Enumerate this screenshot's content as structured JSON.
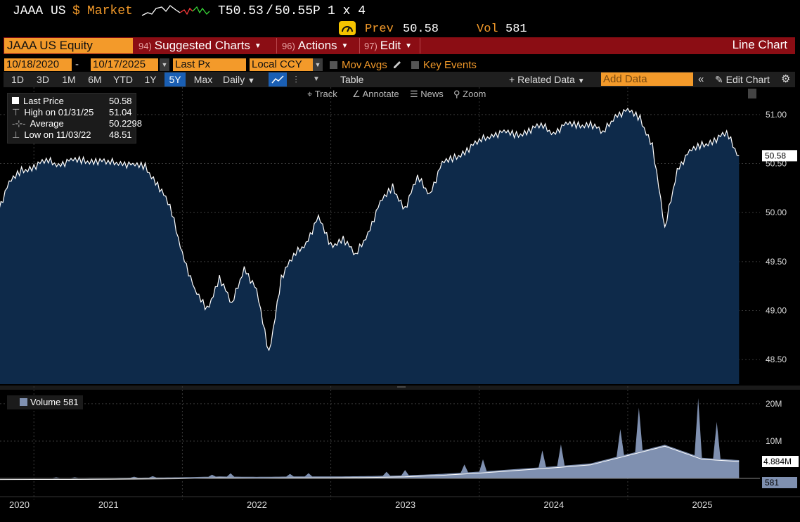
{
  "ticker": {
    "symbol": "JAAA US",
    "currency": "$",
    "market": "Market",
    "bid": "T50.53",
    "separator": "/",
    "ask": "50.55P",
    "size": "1 x 4",
    "prev_label": "Prev",
    "prev_value": "50.58",
    "vol_label": "Vol",
    "vol_value": "581"
  },
  "menu": {
    "security": "JAAA US Equity",
    "items": [
      {
        "num": "94)",
        "label": "Suggested Charts"
      },
      {
        "num": "96)",
        "label": "Actions"
      },
      {
        "num": "97)",
        "label": "Edit"
      }
    ],
    "chart_type": "Line Chart"
  },
  "settings": {
    "start_date": "10/18/2020",
    "dash": "-",
    "end_date": "10/17/2025",
    "field": "Last Px",
    "currency": "Local CCY",
    "mov_avgs": "Mov Avgs",
    "key_events": "Key Events"
  },
  "toolbar": {
    "timeframes": [
      "1D",
      "3D",
      "1M",
      "6M",
      "YTD",
      "1Y",
      "5Y",
      "Max"
    ],
    "active_timeframe": "5Y",
    "frequency": "Daily",
    "table": "Table",
    "related_data": "Related Data",
    "add_data_placeholder": "Add Data",
    "edit_chart": "Edit Chart"
  },
  "chart_tools": [
    "Track",
    "Annotate",
    "News",
    "Zoom"
  ],
  "legend": {
    "last_price_label": "Last Price",
    "last_price": "50.58",
    "high_label": "High on 01/31/25",
    "high": "51.04",
    "average_label": "Average",
    "average": "50.2298",
    "low_label": "Low on 11/03/22",
    "low": "48.51"
  },
  "volume_legend": "Volume 581",
  "colors": {
    "accent": "#f39a2a",
    "menu_bar": "#8b0d14",
    "price_fill": "#0e2a4a",
    "volume_fill": "#7f90b0",
    "active_tab": "#1a5fb4"
  },
  "chart_data": [
    {
      "type": "area",
      "title": "",
      "ylim": [
        48.25,
        51.25
      ],
      "yticks": [
        "51.00",
        "50.50",
        "50.00",
        "49.50",
        "49.00",
        "48.50"
      ],
      "last_value_label": "50.58",
      "xticks": [
        "2020",
        "2021",
        "2022",
        "2023",
        "2024",
        "2025"
      ],
      "series": [
        {
          "x": [
            "2020-10",
            "2020-11",
            "2020-12",
            "2021-01",
            "2021-02",
            "2021-03",
            "2021-04",
            "2021-05",
            "2021-06",
            "2021-07",
            "2021-08",
            "2021-09",
            "2021-10",
            "2021-11",
            "2021-12",
            "2022-01",
            "2022-02",
            "2022-03",
            "2022-04",
            "2022-05",
            "2022-06",
            "2022-07",
            "2022-08",
            "2022-09",
            "2022-10",
            "2022-11",
            "2022-12",
            "2023-01",
            "2023-02",
            "2023-03",
            "2023-04",
            "2023-05",
            "2023-06",
            "2023-07",
            "2023-08",
            "2023-09",
            "2023-10",
            "2023-11",
            "2023-12",
            "2024-01",
            "2024-02",
            "2024-03",
            "2024-04",
            "2024-05",
            "2024-06",
            "2024-07",
            "2024-08",
            "2024-09",
            "2024-10",
            "2024-11",
            "2024-12",
            "2025-01",
            "2025-02",
            "2025-03",
            "2025-04",
            "2025-05",
            "2025-06",
            "2025-07",
            "2025-08",
            "2025-09",
            "2025-10"
          ],
          "values": [
            50.0,
            50.3,
            50.42,
            50.48,
            50.52,
            50.5,
            50.53,
            50.52,
            50.54,
            50.5,
            50.52,
            50.48,
            50.46,
            50.3,
            50.05,
            49.6,
            49.2,
            49.0,
            49.35,
            49.05,
            49.45,
            49.2,
            48.55,
            49.35,
            49.55,
            49.7,
            49.95,
            49.65,
            49.75,
            49.55,
            49.8,
            50.1,
            50.25,
            50.05,
            50.35,
            50.2,
            50.5,
            50.55,
            50.65,
            50.72,
            50.8,
            50.82,
            50.78,
            50.85,
            50.88,
            50.82,
            50.9,
            50.88,
            50.92,
            50.8,
            51.0,
            51.04,
            50.95,
            50.7,
            49.82,
            50.45,
            50.62,
            50.68,
            50.75,
            50.8,
            50.58
          ]
        }
      ]
    },
    {
      "type": "area",
      "title": "",
      "yticks": [
        "20M",
        "10M"
      ],
      "ylim": [
        0,
        23
      ],
      "last_value_label": "581",
      "moving_avg_label": "4.884M",
      "series": [
        {
          "name": "Volume",
          "x": [
            "2020-10",
            "2021-01",
            "2021-04",
            "2021-07",
            "2021-10",
            "2022-01",
            "2022-04",
            "2022-07",
            "2022-10",
            "2023-01",
            "2023-04",
            "2023-07",
            "2023-10",
            "2024-01",
            "2024-04",
            "2024-07",
            "2024-10",
            "2025-01",
            "2025-04",
            "2025-07",
            "2025-10"
          ],
          "values": [
            0.05,
            0.1,
            0.1,
            0.15,
            0.2,
            0.3,
            0.5,
            0.4,
            0.5,
            0.5,
            0.6,
            0.8,
            1.2,
            1.8,
            2.5,
            3.2,
            4.0,
            6.5,
            9.0,
            5.5,
            4.9
          ]
        }
      ]
    }
  ]
}
